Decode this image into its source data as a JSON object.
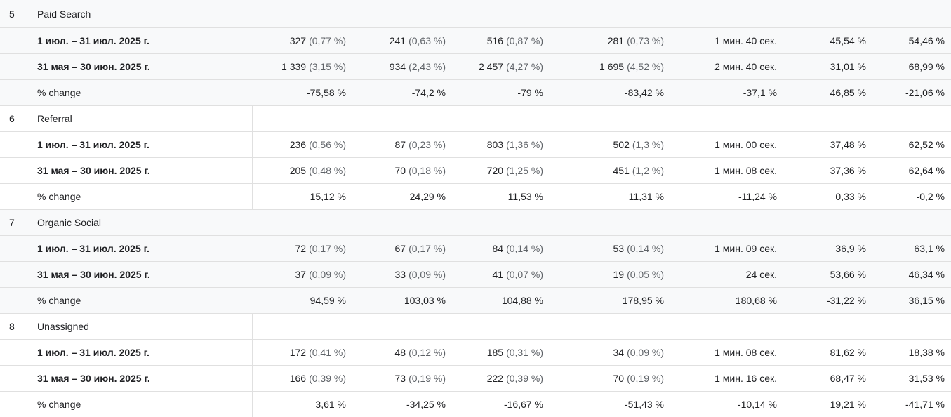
{
  "groups": [
    {
      "index": "5",
      "channel": "Paid Search",
      "shaded": true,
      "rows": [
        {
          "label": "1 июл. – 31 июл. 2025 г.",
          "cells": [
            [
              "327",
              "(0,77 %)"
            ],
            [
              "241",
              "(0,63 %)"
            ],
            [
              "516",
              "(0,87 %)"
            ],
            [
              "281",
              "(0,73 %)"
            ],
            [
              "1 мин. 40 сек.",
              ""
            ],
            [
              "45,54 %",
              ""
            ],
            [
              "54,46 %",
              ""
            ]
          ]
        },
        {
          "label": "31 мая – 30 июн. 2025 г.",
          "cells": [
            [
              "1 339",
              "(3,15 %)"
            ],
            [
              "934",
              "(2,43 %)"
            ],
            [
              "2 457",
              "(4,27 %)"
            ],
            [
              "1 695",
              "(4,52 %)"
            ],
            [
              "2 мин. 40 сек.",
              ""
            ],
            [
              "31,01 %",
              ""
            ],
            [
              "68,99 %",
              ""
            ]
          ]
        },
        {
          "label": "% change",
          "cells": [
            [
              "-75,58 %",
              ""
            ],
            [
              "-74,2 %",
              ""
            ],
            [
              "-79 %",
              ""
            ],
            [
              "-83,42 %",
              ""
            ],
            [
              "-37,1 %",
              ""
            ],
            [
              "46,85 %",
              ""
            ],
            [
              "-21,06 %",
              ""
            ]
          ]
        }
      ]
    },
    {
      "index": "6",
      "channel": "Referral",
      "shaded": false,
      "rows": [
        {
          "label": "1 июл. – 31 июл. 2025 г.",
          "cells": [
            [
              "236",
              "(0,56 %)"
            ],
            [
              "87",
              "(0,23 %)"
            ],
            [
              "803",
              "(1,36 %)"
            ],
            [
              "502",
              "(1,3 %)"
            ],
            [
              "1 мин. 00 сек.",
              ""
            ],
            [
              "37,48 %",
              ""
            ],
            [
              "62,52 %",
              ""
            ]
          ]
        },
        {
          "label": "31 мая – 30 июн. 2025 г.",
          "cells": [
            [
              "205",
              "(0,48 %)"
            ],
            [
              "70",
              "(0,18 %)"
            ],
            [
              "720",
              "(1,25 %)"
            ],
            [
              "451",
              "(1,2 %)"
            ],
            [
              "1 мин. 08 сек.",
              ""
            ],
            [
              "37,36 %",
              ""
            ],
            [
              "62,64 %",
              ""
            ]
          ]
        },
        {
          "label": "% change",
          "cells": [
            [
              "15,12 %",
              ""
            ],
            [
              "24,29 %",
              ""
            ],
            [
              "11,53 %",
              ""
            ],
            [
              "11,31 %",
              ""
            ],
            [
              "-11,24 %",
              ""
            ],
            [
              "0,33 %",
              ""
            ],
            [
              "-0,2 %",
              ""
            ]
          ]
        }
      ]
    },
    {
      "index": "7",
      "channel": "Organic Social",
      "shaded": true,
      "rows": [
        {
          "label": "1 июл. – 31 июл. 2025 г.",
          "cells": [
            [
              "72",
              "(0,17 %)"
            ],
            [
              "67",
              "(0,17 %)"
            ],
            [
              "84",
              "(0,14 %)"
            ],
            [
              "53",
              "(0,14 %)"
            ],
            [
              "1 мин. 09 сек.",
              ""
            ],
            [
              "36,9 %",
              ""
            ],
            [
              "63,1 %",
              ""
            ]
          ]
        },
        {
          "label": "31 мая – 30 июн. 2025 г.",
          "cells": [
            [
              "37",
              "(0,09 %)"
            ],
            [
              "33",
              "(0,09 %)"
            ],
            [
              "41",
              "(0,07 %)"
            ],
            [
              "19",
              "(0,05 %)"
            ],
            [
              "24 сек.",
              ""
            ],
            [
              "53,66 %",
              ""
            ],
            [
              "46,34 %",
              ""
            ]
          ]
        },
        {
          "label": "% change",
          "cells": [
            [
              "94,59 %",
              ""
            ],
            [
              "103,03 %",
              ""
            ],
            [
              "104,88 %",
              ""
            ],
            [
              "178,95 %",
              ""
            ],
            [
              "180,68 %",
              ""
            ],
            [
              "-31,22 %",
              ""
            ],
            [
              "36,15 %",
              ""
            ]
          ]
        }
      ]
    },
    {
      "index": "8",
      "channel": "Unassigned",
      "shaded": false,
      "rows": [
        {
          "label": "1 июл. – 31 июл. 2025 г.",
          "cells": [
            [
              "172",
              "(0,41 %)"
            ],
            [
              "48",
              "(0,12 %)"
            ],
            [
              "185",
              "(0,31 %)"
            ],
            [
              "34",
              "(0,09 %)"
            ],
            [
              "1 мин. 08 сек.",
              ""
            ],
            [
              "81,62 %",
              ""
            ],
            [
              "18,38 %",
              ""
            ]
          ]
        },
        {
          "label": "31 мая – 30 июн. 2025 г.",
          "cells": [
            [
              "166",
              "(0,39 %)"
            ],
            [
              "73",
              "(0,19 %)"
            ],
            [
              "222",
              "(0,39 %)"
            ],
            [
              "70",
              "(0,19 %)"
            ],
            [
              "1 мин. 16 сек.",
              ""
            ],
            [
              "68,47 %",
              ""
            ],
            [
              "31,53 %",
              ""
            ]
          ]
        },
        {
          "label": "% change",
          "cells": [
            [
              "3,61 %",
              ""
            ],
            [
              "-34,25 %",
              ""
            ],
            [
              "-16,67 %",
              ""
            ],
            [
              "-51,43 %",
              ""
            ],
            [
              "-10,14 %",
              ""
            ],
            [
              "19,21 %",
              ""
            ],
            [
              "-41,71 %",
              ""
            ]
          ]
        }
      ]
    }
  ]
}
